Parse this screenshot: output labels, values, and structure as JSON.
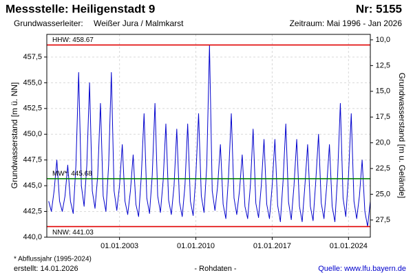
{
  "chart_data": {
    "type": "line",
    "title": "Messstelle: Heiligenstadt 9",
    "station_number": "Nr: 5155",
    "aquifer_label": "Grundwasserleiter:",
    "aquifer": "Weißer Jura / Malmkarst",
    "period": "Zeitraum: Mai 1996 - Jan 2026",
    "ylabel": "Grundwasserstand [m ü. NN]",
    "y2label": "Grundwasserstand [m u. Gelände]",
    "footnote": "* Abflussjahr (1995-2024)",
    "created": "erstellt:  14.01.2026",
    "data_note": "- Rohdaten -",
    "source": "Quelle: www.lfu.bayern.de",
    "grid": true,
    "xlim": [
      1996.33,
      2026.0
    ],
    "xticks": [
      {
        "value": 2003,
        "label": "01.01.2003"
      },
      {
        "value": 2010,
        "label": "01.01.2010"
      },
      {
        "value": 2017,
        "label": "01.01.2017"
      },
      {
        "value": 2024,
        "label": "01.01.2024"
      }
    ],
    "ylim": [
      440,
      459.7
    ],
    "yticks": [
      {
        "value": 440,
        "label": "440,0"
      },
      {
        "value": 442.5,
        "label": "442,5"
      },
      {
        "value": 445,
        "label": "445,0"
      },
      {
        "value": 447.5,
        "label": "447,5"
      },
      {
        "value": 450,
        "label": "450,0"
      },
      {
        "value": 452.5,
        "label": "452,5"
      },
      {
        "value": 455,
        "label": "455,0"
      },
      {
        "value": 457.5,
        "label": "457,5"
      }
    ],
    "y2lim": [
      29.17,
      9.47
    ],
    "y2ticks": [
      {
        "value": 10,
        "label": "10,0"
      },
      {
        "value": 12.5,
        "label": "12,5"
      },
      {
        "value": 15,
        "label": "15,0"
      },
      {
        "value": 17.5,
        "label": "17,5"
      },
      {
        "value": 20,
        "label": "20,0"
      },
      {
        "value": 22.5,
        "label": "22,5"
      },
      {
        "value": 25,
        "label": "25,0"
      },
      {
        "value": 27.5,
        "label": "27,5"
      }
    ],
    "reference_lines": [
      {
        "label": "HHW: 458.67",
        "value": 458.67,
        "color": "#e00000"
      },
      {
        "label": "MW*: 445.68",
        "value": 445.68,
        "color": "#008000"
      },
      {
        "label": "NNW: 441.03",
        "value": 441.03,
        "color": "#e00000"
      }
    ],
    "x": [
      1996.5,
      1996.75,
      1997,
      1997.25,
      1997.5,
      1997.75,
      1998,
      1998.25,
      1998.5,
      1998.75,
      1999,
      1999.25,
      1999.5,
      1999.75,
      2000,
      2000.25,
      2000.5,
      2000.75,
      2001,
      2001.25,
      2001.5,
      2001.75,
      2002,
      2002.25,
      2002.5,
      2002.75,
      2003,
      2003.25,
      2003.5,
      2003.75,
      2004,
      2004.25,
      2004.5,
      2004.75,
      2005,
      2005.25,
      2005.5,
      2005.75,
      2006,
      2006.25,
      2006.5,
      2006.75,
      2007,
      2007.25,
      2007.5,
      2007.75,
      2008,
      2008.25,
      2008.5,
      2008.75,
      2009,
      2009.25,
      2009.5,
      2009.75,
      2010,
      2010.25,
      2010.5,
      2010.75,
      2011,
      2011.25,
      2011.5,
      2011.75,
      2012,
      2012.25,
      2012.5,
      2012.75,
      2013,
      2013.25,
      2013.5,
      2013.75,
      2014,
      2014.25,
      2014.5,
      2014.75,
      2015,
      2015.25,
      2015.5,
      2015.75,
      2016,
      2016.25,
      2016.5,
      2016.75,
      2017,
      2017.25,
      2017.5,
      2017.75,
      2018,
      2018.25,
      2018.5,
      2018.75,
      2019,
      2019.25,
      2019.5,
      2019.75,
      2020,
      2020.25,
      2020.5,
      2020.75,
      2021,
      2021.25,
      2021.5,
      2021.75,
      2022,
      2022.25,
      2022.5,
      2022.75,
      2023,
      2023.25,
      2023.5,
      2023.75,
      2024,
      2024.25,
      2024.5,
      2024.75,
      2025,
      2025.25,
      2025.5,
      2025.75,
      2026.0
    ],
    "series": [
      {
        "name": "Grundwasserstand",
        "color": "#0000cc",
        "values": [
          443.5,
          442.5,
          444.5,
          447.5,
          443.5,
          442.5,
          444,
          447,
          443.5,
          442.3,
          447,
          456,
          445,
          443,
          447,
          455,
          444.5,
          442.8,
          446,
          453,
          444,
          442.5,
          447,
          456,
          444.5,
          442.6,
          445,
          449,
          443.5,
          442.2,
          444.5,
          448,
          443.2,
          442,
          446,
          452,
          443.8,
          442.3,
          446,
          453,
          444,
          442.4,
          445.5,
          451,
          443.6,
          442.2,
          445,
          450.5,
          443.4,
          442,
          445,
          451,
          443.5,
          442.1,
          446,
          452,
          444,
          442.4,
          447,
          458.67,
          444.5,
          442.6,
          445,
          449,
          443.2,
          441.8,
          446,
          452,
          443.8,
          442.2,
          444.5,
          448,
          443,
          441.8,
          445,
          450.5,
          443.3,
          441.9,
          445,
          449.5,
          443.2,
          441.8,
          445,
          449.5,
          443.1,
          441.5,
          445.5,
          451,
          443.4,
          441.7,
          445,
          449.5,
          443,
          441.5,
          445,
          449,
          443,
          441.6,
          445.5,
          450,
          443.3,
          441.8,
          445,
          449,
          443,
          441.5,
          446,
          453,
          443.8,
          442,
          446,
          452,
          443.5,
          441.8,
          444,
          447.5,
          442.5,
          441.03,
          443.5
        ]
      }
    ]
  }
}
